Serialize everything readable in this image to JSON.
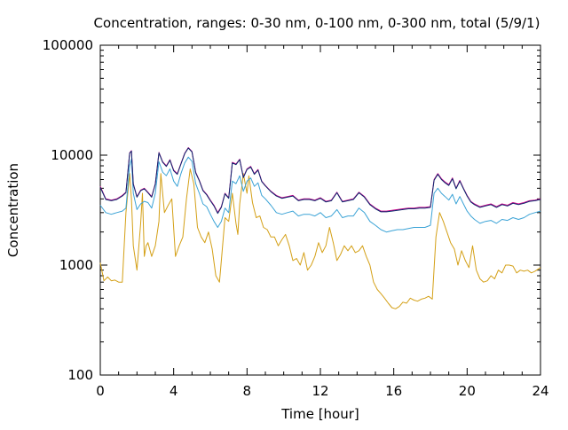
{
  "chart_data": {
    "type": "line",
    "title": "Concentration, ranges: 0-30 nm, 0-100 nm, 0-300 nm, total (5/9/1)",
    "xlabel": "Time [hour]",
    "ylabel": "Concentration",
    "xlim": [
      0,
      24
    ],
    "ylim": [
      100,
      100000
    ],
    "yscale": "log",
    "grid": false,
    "x_ticks": [
      0,
      4,
      8,
      12,
      16,
      20,
      24
    ],
    "x_tick_labels": [
      "0",
      "4",
      "8",
      "12",
      "16",
      "20",
      "24"
    ],
    "y_ticks": [
      100,
      1000,
      10000,
      100000
    ],
    "y_tick_labels": [
      "100",
      "1000",
      "10000",
      "100000"
    ],
    "series": [
      {
        "color": "#d4a017",
        "x": [
          0,
          0.2,
          0.4,
          0.6,
          0.8,
          1.0,
          1.2,
          1.4,
          1.6,
          1.7,
          1.8,
          2.0,
          2.2,
          2.3,
          2.4,
          2.5,
          2.6,
          2.8,
          3.0,
          3.2,
          3.3,
          3.5,
          3.7,
          3.9,
          4.1,
          4.3,
          4.5,
          4.7,
          4.9,
          5.1,
          5.3,
          5.5,
          5.7,
          5.9,
          6.1,
          6.3,
          6.5,
          6.6,
          6.8,
          7.0,
          7.2,
          7.4,
          7.5,
          7.6,
          7.8,
          8.0,
          8.1,
          8.3,
          8.5,
          8.7,
          8.9,
          9.1,
          9.3,
          9.5,
          9.7,
          9.9,
          10.1,
          10.3,
          10.5,
          10.7,
          10.9,
          11.1,
          11.3,
          11.5,
          11.7,
          11.9,
          12.1,
          12.3,
          12.5,
          12.7,
          12.9,
          13.1,
          13.3,
          13.5,
          13.7,
          13.9,
          14.1,
          14.3,
          14.5,
          14.7,
          14.9,
          15.1,
          15.3,
          15.5,
          15.7,
          15.9,
          16.1,
          16.3,
          16.5,
          16.7,
          16.9,
          17.1,
          17.3,
          17.5,
          17.7,
          17.9,
          18.1,
          18.3,
          18.5,
          18.7,
          18.9,
          19.1,
          19.3,
          19.5,
          19.7,
          19.9,
          20.1,
          20.3,
          20.5,
          20.7,
          20.9,
          21.1,
          21.3,
          21.5,
          21.7,
          21.9,
          22.1,
          22.3,
          22.5,
          22.7,
          22.9,
          23.1,
          23.3,
          23.5,
          23.7,
          24.0
        ],
        "y": [
          1050,
          720,
          780,
          720,
          730,
          700,
          700,
          3000,
          6800,
          4000,
          1500,
          900,
          2400,
          4500,
          1200,
          1500,
          1600,
          1200,
          1500,
          2500,
          6800,
          3000,
          3500,
          4000,
          1200,
          1500,
          1800,
          4000,
          7500,
          5500,
          2200,
          1800,
          1600,
          2000,
          1400,
          800,
          700,
          1100,
          2700,
          2500,
          4500,
          2400,
          1900,
          3600,
          6800,
          4500,
          6500,
          3700,
          2700,
          2800,
          2200,
          2100,
          1800,
          1800,
          1500,
          1700,
          1900,
          1500,
          1100,
          1150,
          1000,
          1300,
          900,
          1000,
          1200,
          1600,
          1300,
          1500,
          2200,
          1600,
          1100,
          1250,
          1500,
          1350,
          1500,
          1300,
          1350,
          1500,
          1200,
          1000,
          700,
          600,
          550,
          500,
          450,
          410,
          400,
          420,
          460,
          450,
          500,
          480,
          470,
          490,
          500,
          520,
          490,
          1800,
          3000,
          2500,
          2000,
          1600,
          1400,
          1000,
          1350,
          1100,
          950,
          1500,
          900,
          750,
          700,
          720,
          800,
          750,
          900,
          850,
          1000,
          1000,
          980,
          850,
          900,
          880,
          900,
          850,
          880,
          950
        ]
      },
      {
        "color": "#3ba3d6",
        "x": [
          0,
          0.3,
          0.6,
          0.9,
          1.2,
          1.4,
          1.6,
          1.7,
          1.8,
          2.0,
          2.2,
          2.4,
          2.6,
          2.8,
          3.0,
          3.2,
          3.4,
          3.6,
          3.8,
          4.0,
          4.2,
          4.4,
          4.6,
          4.8,
          5.0,
          5.2,
          5.4,
          5.6,
          5.8,
          6.0,
          6.2,
          6.4,
          6.6,
          6.8,
          7.0,
          7.2,
          7.4,
          7.6,
          7.8,
          8.0,
          8.2,
          8.4,
          8.6,
          8.8,
          9.0,
          9.3,
          9.6,
          9.9,
          10.2,
          10.5,
          10.8,
          11.1,
          11.4,
          11.7,
          12.0,
          12.3,
          12.6,
          12.9,
          13.2,
          13.5,
          13.8,
          14.1,
          14.4,
          14.7,
          15.0,
          15.3,
          15.6,
          15.9,
          16.2,
          16.5,
          16.8,
          17.1,
          17.4,
          17.7,
          18.0,
          18.2,
          18.4,
          18.6,
          18.8,
          19.0,
          19.2,
          19.4,
          19.6,
          19.8,
          20.0,
          20.2,
          20.4,
          20.7,
          21.0,
          21.3,
          21.6,
          21.9,
          22.2,
          22.5,
          22.8,
          23.1,
          23.4,
          23.7,
          24.0
        ],
        "y": [
          3500,
          3000,
          2900,
          3000,
          3100,
          3300,
          8000,
          9200,
          4500,
          3200,
          3600,
          3800,
          3700,
          3300,
          4500,
          8700,
          7000,
          6500,
          7500,
          5800,
          5200,
          6800,
          8500,
          9600,
          8800,
          5500,
          4500,
          3600,
          3400,
          2900,
          2500,
          2200,
          2500,
          3300,
          3000,
          5800,
          5500,
          6500,
          4700,
          5800,
          6200,
          5200,
          5600,
          4300,
          4000,
          3500,
          3000,
          2900,
          3000,
          3100,
          2800,
          2900,
          2900,
          2800,
          3000,
          2700,
          2800,
          3200,
          2700,
          2800,
          2800,
          3300,
          3000,
          2500,
          2300,
          2100,
          2000,
          2050,
          2100,
          2100,
          2150,
          2200,
          2200,
          2200,
          2300,
          4500,
          5000,
          4500,
          4200,
          3900,
          4400,
          3600,
          4200,
          3600,
          3100,
          2800,
          2600,
          2400,
          2500,
          2550,
          2400,
          2600,
          2550,
          2700,
          2600,
          2700,
          2900,
          3000,
          3100
        ]
      },
      {
        "color": "#cc0088",
        "x": [
          0,
          0.3,
          0.6,
          0.9,
          1.2,
          1.4,
          1.6,
          1.7,
          1.8,
          2.0,
          2.2,
          2.4,
          2.6,
          2.8,
          3.0,
          3.2,
          3.4,
          3.6,
          3.8,
          4.0,
          4.2,
          4.4,
          4.6,
          4.8,
          5.0,
          5.2,
          5.4,
          5.6,
          5.8,
          6.0,
          6.2,
          6.4,
          6.6,
          6.8,
          7.0,
          7.2,
          7.4,
          7.6,
          7.8,
          8.0,
          8.2,
          8.4,
          8.6,
          8.8,
          9.0,
          9.3,
          9.6,
          9.9,
          10.2,
          10.5,
          10.8,
          11.1,
          11.4,
          11.7,
          12.0,
          12.3,
          12.6,
          12.9,
          13.2,
          13.5,
          13.8,
          14.1,
          14.4,
          14.7,
          15.0,
          15.3,
          15.6,
          15.9,
          16.2,
          16.5,
          16.8,
          17.1,
          17.4,
          17.7,
          18.0,
          18.2,
          18.4,
          18.6,
          18.8,
          19.0,
          19.2,
          19.4,
          19.6,
          19.8,
          20.0,
          20.2,
          20.4,
          20.7,
          21.0,
          21.3,
          21.6,
          21.9,
          22.2,
          22.5,
          22.8,
          23.1,
          23.4,
          23.7,
          24.0
        ],
        "y": [
          5200,
          4000,
          3900,
          4000,
          4300,
          4600,
          10500,
          11000,
          5500,
          4200,
          4800,
          5000,
          4600,
          4200,
          5500,
          10600,
          8700,
          8000,
          9100,
          7300,
          6800,
          8400,
          10400,
          11700,
          10800,
          7000,
          5900,
          4800,
          4400,
          3900,
          3500,
          3000,
          3400,
          4500,
          4100,
          8600,
          8300,
          9200,
          6300,
          7500,
          7900,
          6800,
          7400,
          5800,
          5300,
          4700,
          4300,
          4100,
          4200,
          4300,
          3900,
          4000,
          4000,
          3900,
          4100,
          3800,
          3900,
          4600,
          3800,
          3900,
          4000,
          4600,
          4200,
          3600,
          3300,
          3100,
          3100,
          3150,
          3200,
          3250,
          3300,
          3300,
          3350,
          3350,
          3400,
          6000,
          6800,
          6100,
          5700,
          5400,
          6200,
          5000,
          5900,
          5000,
          4300,
          3800,
          3600,
          3400,
          3500,
          3600,
          3400,
          3600,
          3500,
          3700,
          3600,
          3700,
          3850,
          3900,
          4000
        ]
      },
      {
        "color": "#0a2a6e",
        "x": [
          0,
          0.3,
          0.6,
          0.9,
          1.2,
          1.4,
          1.6,
          1.7,
          1.8,
          2.0,
          2.2,
          2.4,
          2.6,
          2.8,
          3.0,
          3.2,
          3.4,
          3.6,
          3.8,
          4.0,
          4.2,
          4.4,
          4.6,
          4.8,
          5.0,
          5.2,
          5.4,
          5.6,
          5.8,
          6.0,
          6.2,
          6.4,
          6.6,
          6.8,
          7.0,
          7.2,
          7.4,
          7.6,
          7.8,
          8.0,
          8.2,
          8.4,
          8.6,
          8.8,
          9.0,
          9.3,
          9.6,
          9.9,
          10.2,
          10.5,
          10.8,
          11.1,
          11.4,
          11.7,
          12.0,
          12.3,
          12.6,
          12.9,
          13.2,
          13.5,
          13.8,
          14.1,
          14.4,
          14.7,
          15.0,
          15.3,
          15.6,
          15.9,
          16.2,
          16.5,
          16.8,
          17.1,
          17.4,
          17.7,
          18.0,
          18.2,
          18.4,
          18.6,
          18.8,
          19.0,
          19.2,
          19.4,
          19.6,
          19.8,
          20.0,
          20.2,
          20.4,
          20.7,
          21.0,
          21.3,
          21.6,
          21.9,
          22.2,
          22.5,
          22.8,
          23.1,
          23.4,
          23.7,
          24.0
        ],
        "y": [
          5100,
          3950,
          3850,
          3950,
          4250,
          4550,
          10400,
          10900,
          5450,
          4150,
          4750,
          4950,
          4550,
          4150,
          5450,
          10500,
          8600,
          7900,
          9000,
          7200,
          6700,
          8300,
          10300,
          11600,
          10700,
          6900,
          5850,
          4750,
          4350,
          3850,
          3450,
          2950,
          3350,
          4450,
          4050,
          8500,
          8200,
          9100,
          6250,
          7400,
          7800,
          6700,
          7300,
          5750,
          5250,
          4650,
          4250,
          4050,
          4150,
          4250,
          3850,
          3950,
          3950,
          3850,
          4050,
          3750,
          3850,
          4550,
          3750,
          3850,
          3950,
          4550,
          4150,
          3550,
          3250,
          3050,
          3050,
          3100,
          3150,
          3200,
          3250,
          3250,
          3300,
          3300,
          3350,
          5900,
          6700,
          6000,
          5600,
          5300,
          6100,
          4950,
          5800,
          4950,
          4250,
          3750,
          3550,
          3350,
          3450,
          3550,
          3350,
          3550,
          3450,
          3650,
          3550,
          3650,
          3800,
          3850,
          3950
        ]
      }
    ]
  }
}
